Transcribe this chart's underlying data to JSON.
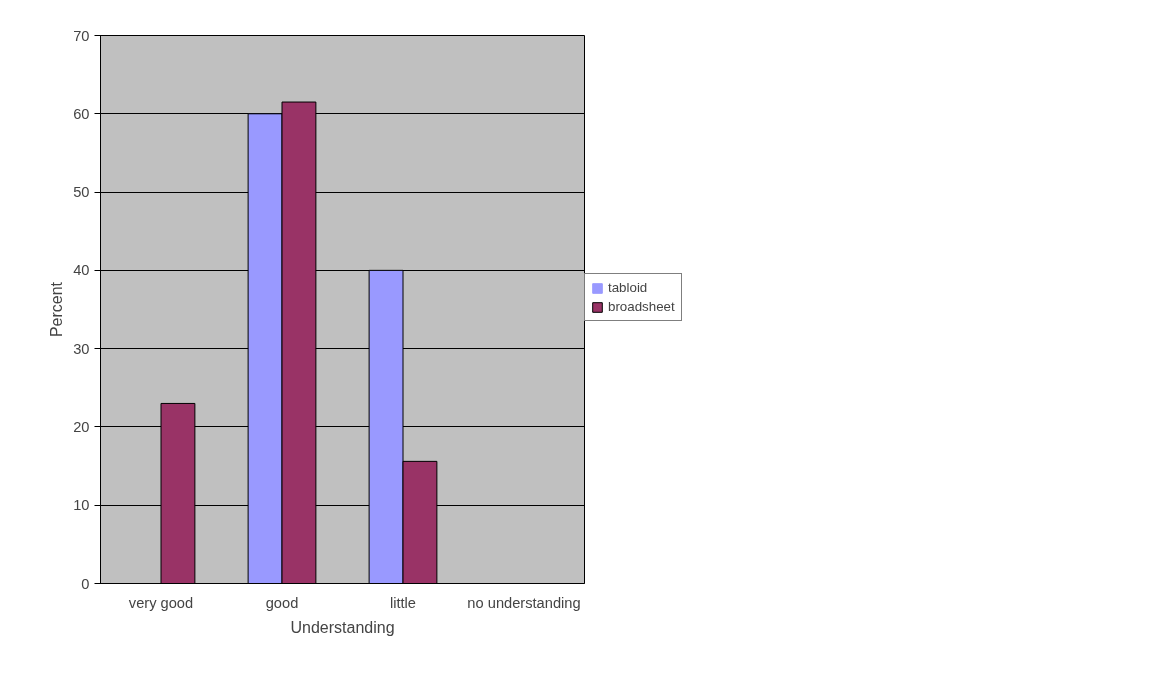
{
  "chart_data": {
    "type": "bar",
    "xlabel": "Understanding",
    "ylabel": "Percent",
    "categories": [
      "very good",
      "good",
      "little",
      "no understanding"
    ],
    "series": [
      {
        "name": "tabloid",
        "color": "#9999ff",
        "values": [
          0,
          60,
          40,
          0
        ]
      },
      {
        "name": "broadsheet",
        "color": "#993366",
        "values": [
          23,
          61.5,
          15.6,
          0
        ]
      }
    ],
    "ylim": [
      0,
      70
    ],
    "yticks": [
      0,
      10,
      20,
      30,
      40,
      50,
      60,
      70
    ],
    "grid": "y",
    "legend": "right"
  }
}
